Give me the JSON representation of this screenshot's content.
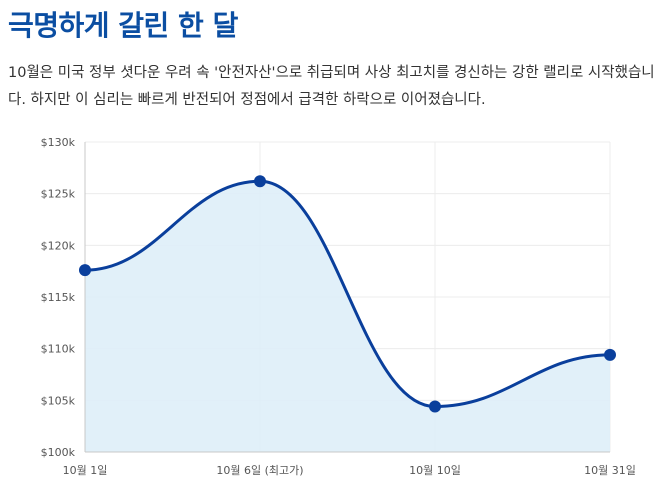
{
  "header": {
    "title": "극명하게 갈린 한 달",
    "description": "10월은 미국 정부 셧다운 우려 속 '안전자산'으로 취급되며 사상 최고치를 경신하는 강한 랠리로 시작했습니다. 하지만 이 심리는 빠르게 반전되어 정점에서 급격한 하락으로 이어졌습니다."
  },
  "chart_data": {
    "type": "area",
    "categories": [
      "10월 1일",
      "10월 6일 (최고가)",
      "10월 10일",
      "10월 31일"
    ],
    "values": [
      117.6,
      126.2,
      104.4,
      109.4
    ],
    "y_unit": "$k",
    "ylim": [
      100,
      130
    ],
    "yticks": [
      100,
      105,
      110,
      115,
      120,
      125,
      130
    ],
    "ytick_labels": [
      "$100k",
      "$105k",
      "$110k",
      "$115k",
      "$120k",
      "$125k",
      "$130k"
    ],
    "title": "",
    "xlabel": "",
    "ylabel": "",
    "grid": true,
    "colors": {
      "line": "#0a3f9c",
      "fill": "#deeef8",
      "grid": "#ececec"
    }
  }
}
